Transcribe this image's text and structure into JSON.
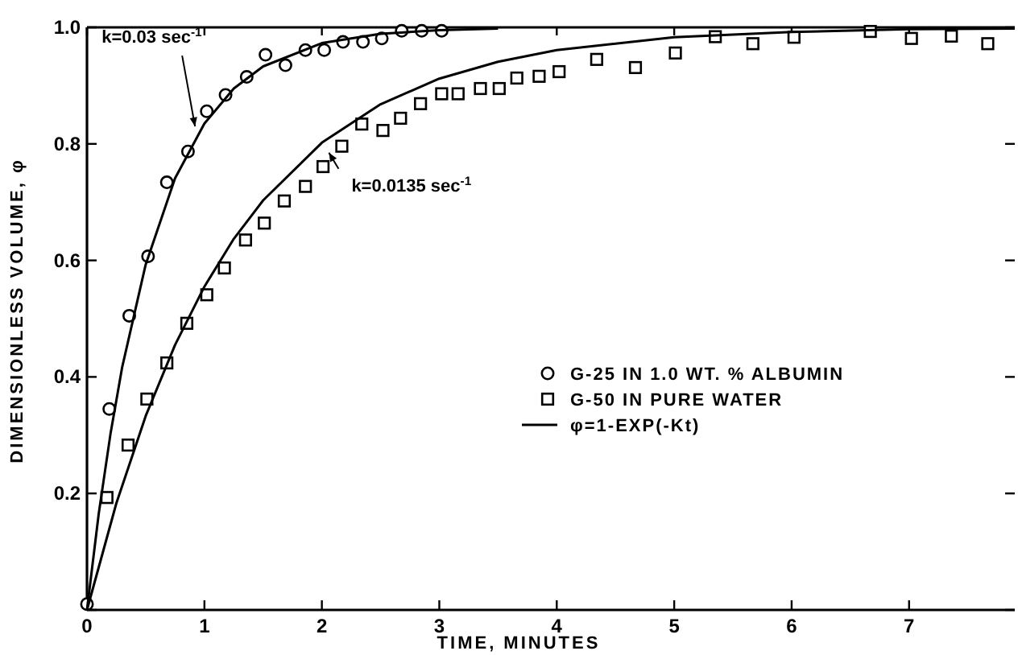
{
  "chart_data": {
    "type": "scatter",
    "xlabel": "TIME, MINUTES",
    "ylabel": "DIMENSIONLESS VOLUME, φ",
    "xlim": [
      0,
      7.9
    ],
    "ylim": [
      0,
      1.0
    ],
    "xticks": [
      0,
      1,
      2,
      3,
      4,
      5,
      6,
      7
    ],
    "yticks": [
      {
        "value": 0,
        "label": null
      },
      {
        "value": 0.2,
        "label": "0.2"
      },
      {
        "value": 0.4,
        "label": "0.4"
      },
      {
        "value": 0.6,
        "label": "0.6"
      },
      {
        "value": 0.8,
        "label": "0.8"
      },
      {
        "value": 1.0,
        "label": "1.0"
      }
    ],
    "grid": false,
    "legend": "right",
    "series": [
      {
        "name": "G-25 IN 1.0 WT. % ALBUMIN",
        "marker": "circle",
        "color": "#000000",
        "x": [
          0,
          0.19,
          0.36,
          0.52,
          0.68,
          0.86,
          1.02,
          1.18,
          1.36,
          1.52,
          1.69,
          1.86,
          2.02,
          2.18,
          2.35,
          2.51,
          2.68,
          2.85,
          3.02
        ],
        "values": [
          0.01,
          0.345,
          0.505,
          0.607,
          0.734,
          0.787,
          0.856,
          0.884,
          0.915,
          0.953,
          0.935,
          0.961,
          0.961,
          0.975,
          0.975,
          0.981,
          0.994,
          0.994,
          0.994
        ]
      },
      {
        "name": "G-50 IN PURE WATER",
        "marker": "square",
        "color": "#000000",
        "x": [
          0.17,
          0.35,
          0.51,
          0.68,
          0.85,
          1.02,
          1.17,
          1.35,
          1.51,
          1.68,
          1.86,
          2.01,
          2.17,
          2.34,
          2.52,
          2.67,
          2.84,
          3.02,
          3.16,
          3.35,
          3.51,
          3.66,
          3.85,
          4.02,
          4.34,
          4.67,
          5.01,
          5.35,
          5.67,
          6.02,
          6.67,
          7.02,
          7.36,
          7.67
        ],
        "values": [
          0.193,
          0.283,
          0.362,
          0.424,
          0.492,
          0.541,
          0.587,
          0.635,
          0.664,
          0.702,
          0.727,
          0.761,
          0.796,
          0.834,
          0.823,
          0.844,
          0.869,
          0.886,
          0.886,
          0.895,
          0.895,
          0.913,
          0.916,
          0.924,
          0.945,
          0.931,
          0.956,
          0.984,
          0.972,
          0.983,
          0.993,
          0.981,
          0.985,
          0.972
        ]
      },
      {
        "name": "φ=1-EXP(-Kt)",
        "type": "line",
        "marker": "none",
        "line_style": "solid",
        "color": "#000000",
        "x": [
          0,
          0.1,
          0.2,
          0.3,
          0.5,
          0.75,
          1,
          1.25,
          1.5,
          2,
          2.5,
          3,
          3.5
        ],
        "values": [
          0,
          0.165,
          0.302,
          0.417,
          0.593,
          0.741,
          0.835,
          0.895,
          0.933,
          0.973,
          0.989,
          0.995,
          0.998
        ]
      },
      {
        "type": "line",
        "marker": "none",
        "line_style": "solid",
        "color": "#000000",
        "x": [
          0,
          0.25,
          0.5,
          0.75,
          1,
          1.25,
          1.5,
          2,
          2.5,
          3,
          3.5,
          4,
          5,
          6,
          7,
          7.9
        ],
        "values": [
          0,
          0.183,
          0.333,
          0.455,
          0.555,
          0.637,
          0.703,
          0.802,
          0.868,
          0.912,
          0.941,
          0.961,
          0.983,
          0.992,
          0.997,
          0.998
        ]
      }
    ],
    "annotations": [
      {
        "text": "k=0.03 sec$^{-1}$",
        "x": 0.92,
        "y": 0.83
      },
      {
        "text": "k=0.0135 sec$^{-1}$",
        "x": 2.06,
        "y": 0.785
      }
    ]
  }
}
